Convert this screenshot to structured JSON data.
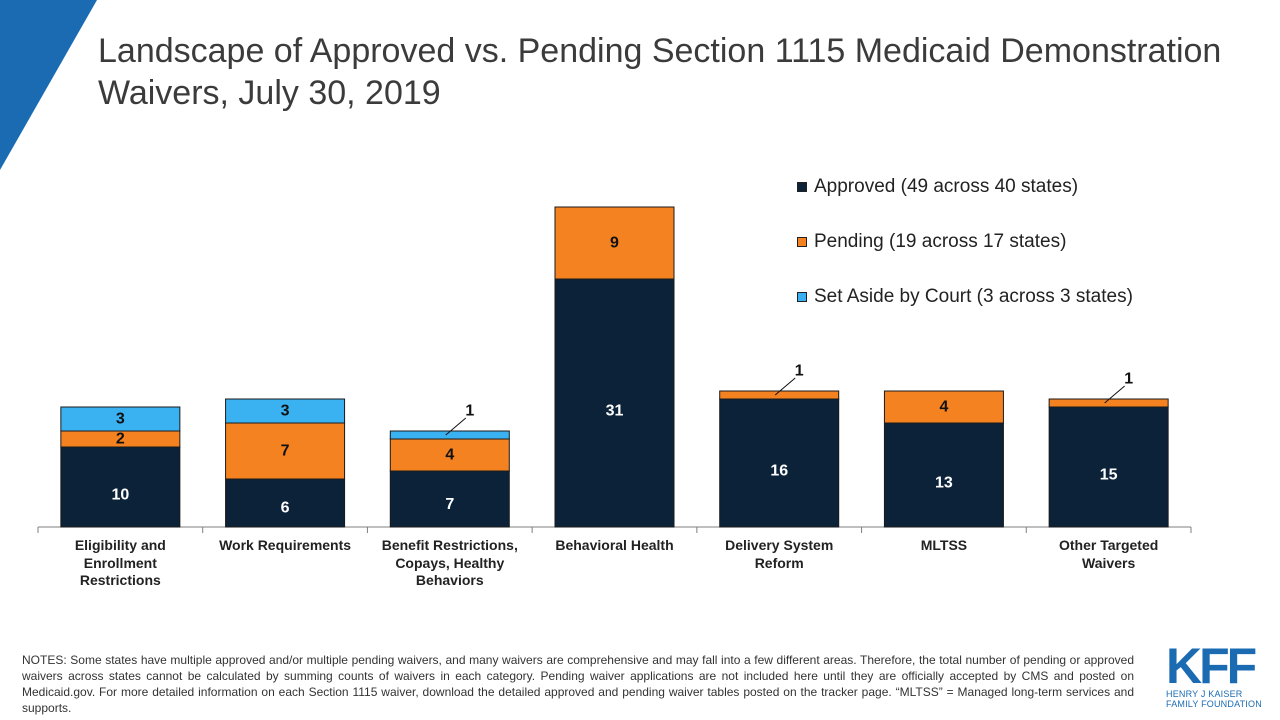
{
  "title": "Landscape of Approved vs. Pending Section 1115 Medicaid Demonstration Waivers, July 30, 2019",
  "colors": {
    "approved": "#0b2239",
    "pending": "#f58220",
    "set_aside": "#3ab2f2",
    "accent": "#1b6bb3"
  },
  "legend": [
    {
      "key": "approved",
      "label": "Approved (49 across 40 states)"
    },
    {
      "key": "pending",
      "label": "Pending (19 across 17 states)"
    },
    {
      "key": "set_aside",
      "label": "Set Aside by Court (3 across 3 states)"
    }
  ],
  "chart_data": {
    "type": "bar",
    "stacked": true,
    "title": "Landscape of Approved vs. Pending Section 1115 Medicaid Demonstration Waivers, July 30, 2019",
    "categories": [
      "Eligibility and Enrollment Restrictions",
      "Work Requirements",
      "Benefit Restrictions, Copays, Healthy Behaviors",
      "Behavioral Health",
      "Delivery System Reform",
      "MLTSS",
      "Other Targeted Waivers"
    ],
    "series": [
      {
        "name": "Approved (49 across 40 states)",
        "key": "approved",
        "values": [
          10,
          6,
          7,
          31,
          16,
          13,
          15
        ]
      },
      {
        "name": "Pending (19 across 17 states)",
        "key": "pending",
        "values": [
          2,
          7,
          4,
          9,
          1,
          4,
          1
        ]
      },
      {
        "name": "Set Aside by Court (3 across 3 states)",
        "key": "set_aside",
        "values": [
          3,
          3,
          1,
          0,
          0,
          0,
          0
        ]
      }
    ],
    "xlabel": "",
    "ylabel": "",
    "ylim": [
      0,
      40
    ],
    "grid": false,
    "legend_position": "top-right"
  },
  "category_label_lines": [
    [
      "Eligibility and",
      "Enrollment",
      "Restrictions"
    ],
    [
      "Work Requirements"
    ],
    [
      "Benefit Restrictions,",
      "Copays, Healthy",
      "Behaviors"
    ],
    [
      "Behavioral Health"
    ],
    [
      "Delivery System",
      "Reform"
    ],
    [
      "MLTSS"
    ],
    [
      "Other Targeted",
      "Waivers"
    ]
  ],
  "notes": "NOTES: Some states have multiple approved and/or multiple pending waivers, and many waivers are comprehensive and may fall into a few different areas. Therefore, the total number of pending or approved waivers across states cannot be calculated by summing counts of waivers in each category. Pending waiver applications are not included here until they are officially accepted by CMS and posted on Medicaid.gov. For more detailed information on each Section 1115 waiver, download the detailed approved and pending waiver tables posted on the tracker page. “MLTSS” = Managed long-term services and supports.",
  "logo": {
    "letters": "KFF",
    "line1": "HENRY J KAISER",
    "line2": "FAMILY FOUNDATION"
  }
}
